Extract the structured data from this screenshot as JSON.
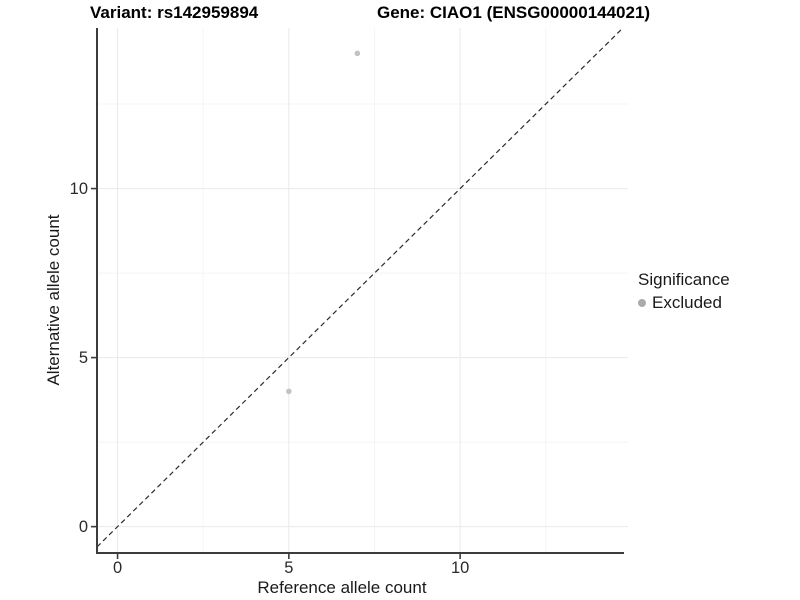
{
  "header": {
    "variant_title": "Variant: rs142959894",
    "gene_title": "Gene: CIAO1 (ENSG00000144021)"
  },
  "chart_data": {
    "type": "scatter",
    "xlabel": "Reference allele count",
    "ylabel": "Alternative allele count",
    "xlim": [
      -0.6,
      14.9
    ],
    "ylim": [
      -0.78,
      14.75
    ],
    "x_ticks": [
      0,
      5,
      10
    ],
    "x_tick_labels": [
      "0",
      "5",
      "10"
    ],
    "y_ticks": [
      0,
      5,
      10
    ],
    "y_tick_labels": [
      "0",
      "5",
      "10"
    ],
    "grid": {
      "major": [
        0,
        5,
        10
      ],
      "minor": [
        2.5,
        7.5,
        12.5
      ]
    },
    "reference_line": {
      "type": "identity",
      "slope": 1,
      "intercept": 0,
      "style": "dashed"
    },
    "series": [
      {
        "name": "Excluded",
        "color": "#c3c3c3",
        "points": [
          {
            "x": 7,
            "y": 14
          },
          {
            "x": 5,
            "y": 4
          }
        ]
      }
    ],
    "legend": {
      "title": "Significance",
      "position": "right",
      "entries": [
        {
          "label": "Excluded",
          "color": "#ababab"
        }
      ]
    },
    "colors": {
      "grid_major": "#e9e9e9",
      "grid_minor": "#f4f4f4",
      "axis_line": "#3c3c3c",
      "tick_text": "#2b2b2b",
      "dashed_line": "#2b2b2b"
    }
  }
}
